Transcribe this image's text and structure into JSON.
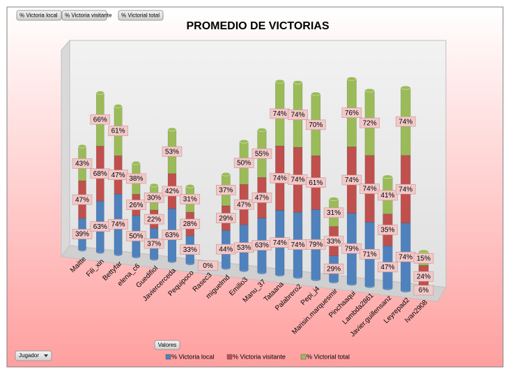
{
  "chart_data": {
    "type": "stacked_cylinder",
    "title": "PROMEDIO DE VICTORIAS",
    "values_field": "Valores",
    "row_field": "Jugador",
    "categories": [
      "Maitte",
      "Fili_xin",
      "Bettyfar",
      "elena_c6",
      "Guedifiol",
      "Javiercerceda",
      "Pequipoco",
      "Rasec3",
      "miguelmd",
      "Emilio3",
      "Manu_37",
      "Tataana",
      "Palabrero2",
      "Pepi_j4",
      "Marisin.marquesmir",
      "Pinchaaqui",
      "Lambda2861",
      "Javier.guillensanz",
      "Leyrepad2",
      "Ivan2908"
    ],
    "series": [
      {
        "name": "% Victoria local",
        "color": "#4f81bd",
        "values": [
          39,
          63,
          74,
          50,
          37,
          63,
          33,
          0,
          44,
          53,
          63,
          74,
          74,
          79,
          29,
          79,
          71,
          47,
          74,
          6
        ],
        "value_labels": [
          "39%",
          "63%",
          "74%",
          "50%",
          "37%",
          "63%",
          "33%",
          "0%",
          "44%",
          "53%",
          "63%",
          "74%",
          "74%",
          "79%",
          "29%",
          "79%",
          "71%",
          "47%",
          "74%",
          "6%"
        ]
      },
      {
        "name": "% Victoria visitante",
        "color": "#c0504d",
        "values": [
          47,
          68,
          47,
          26,
          22,
          42,
          28,
          null,
          29,
          47,
          47,
          74,
          74,
          61,
          33,
          74,
          74,
          35,
          74,
          24
        ],
        "value_labels": [
          "47%",
          "68%",
          "47%",
          "26%",
          "22%",
          "42%",
          "28%",
          null,
          "29%",
          "47%",
          "47%",
          "74%",
          "74%",
          "61%",
          "33%",
          "74%",
          "74%",
          "35%",
          "74%",
          "24%"
        ]
      },
      {
        "name": "% Victorial total",
        "color": "#9bbb59",
        "values": [
          43,
          66,
          61,
          38,
          30,
          53,
          31,
          null,
          37,
          50,
          55,
          74,
          74,
          70,
          31,
          76,
          72,
          41,
          74,
          15
        ],
        "value_labels": [
          "43%",
          "66%",
          "61%",
          "38%",
          "30%",
          "53%",
          "31%",
          null,
          "37%",
          "50%",
          "55%",
          "74%",
          "74%",
          "70%",
          "31%",
          "76%",
          "72%",
          "41%",
          "74%",
          "15%"
        ]
      }
    ]
  }
}
